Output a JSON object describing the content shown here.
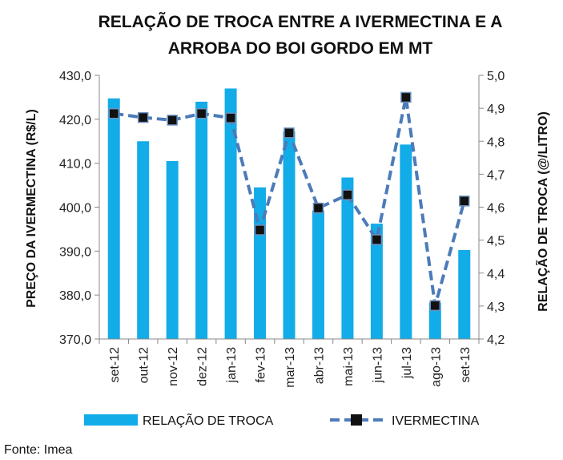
{
  "chart_data": {
    "type": "bar",
    "title_lines": [
      "RELAÇÃO DE TROCA ENTRE A IVERMECTINA E A",
      "ARROBA DO BOI GORDO EM MT"
    ],
    "categories": [
      "set-12",
      "out-12",
      "nov-12",
      "dez-12",
      "jan-13",
      "fev-13",
      "mar-13",
      "abr-13",
      "mai-13",
      "jun-13",
      "jul-13",
      "ago-13",
      "set-13"
    ],
    "ylabel_left": "PREÇO DA IVERMECTINA (R$/L)",
    "ylabel_right": "RELAÇÃO DE TROCA (@/LITRO)",
    "y_left": {
      "min": 370,
      "max": 430,
      "ticks": [
        "370,0",
        "380,0",
        "390,0",
        "400,0",
        "410,0",
        "420,0",
        "430,0"
      ]
    },
    "y_right": {
      "min": 4.2,
      "max": 5.0,
      "ticks": [
        "4,2",
        "4,3",
        "4,4",
        "4,5",
        "4,6",
        "4,7",
        "4,8",
        "4,9",
        "5,0"
      ]
    },
    "series": [
      {
        "name": "RELAÇÃO DE TROCA",
        "type": "bar",
        "axis": "right",
        "color": "#12ace8",
        "values": [
          4.93,
          4.8,
          4.74,
          4.92,
          4.96,
          4.66,
          4.83,
          4.59,
          4.69,
          4.55,
          4.79,
          4.31,
          4.47
        ]
      },
      {
        "name": "IVERMECTINA",
        "type": "line",
        "axis": "left",
        "color": "#4c7bb8",
        "marker_color": "#111111",
        "values": [
          421.3,
          420.4,
          419.8,
          421.3,
          420.3,
          394.8,
          416.9,
          399.8,
          402.8,
          392.6,
          425.0,
          377.6,
          401.4
        ]
      }
    ],
    "legend_placement": "bottom",
    "grid": false
  },
  "source": "Fonte: Imea"
}
